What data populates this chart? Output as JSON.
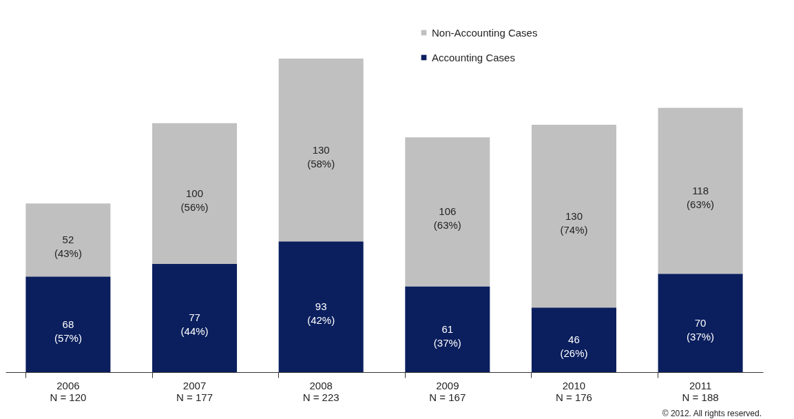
{
  "chart_data": {
    "type": "bar",
    "stacked": true,
    "categories": [
      "2006\nN = 120",
      "2007\nN = 177",
      "2008\nN = 223",
      "2009\nN = 167",
      "2010\nN = 176",
      "2011\nN = 188"
    ],
    "series": [
      {
        "name": "Accounting Cases",
        "color": "#0b1f5e",
        "values": [
          68,
          77,
          93,
          61,
          46,
          70
        ],
        "value_labels": [
          "68\n(57%)",
          "77\n(44%)",
          "93\n(42%)",
          "61\n(37%)",
          "46\n(26%)",
          "70\n(37%)"
        ]
      },
      {
        "name": "Non-Accounting Cases",
        "color": "#c0c0c0",
        "values": [
          52,
          100,
          130,
          106,
          130,
          118
        ],
        "value_labels": [
          "52\n(43%)",
          "100\n(56%)",
          "130\n(58%)",
          "106\n(63%)",
          "130\n(74%)",
          "118\n(63%)"
        ]
      }
    ],
    "legend": "top",
    "grid": false,
    "annotations": [
      "© 2012. All rights reserved."
    ]
  }
}
